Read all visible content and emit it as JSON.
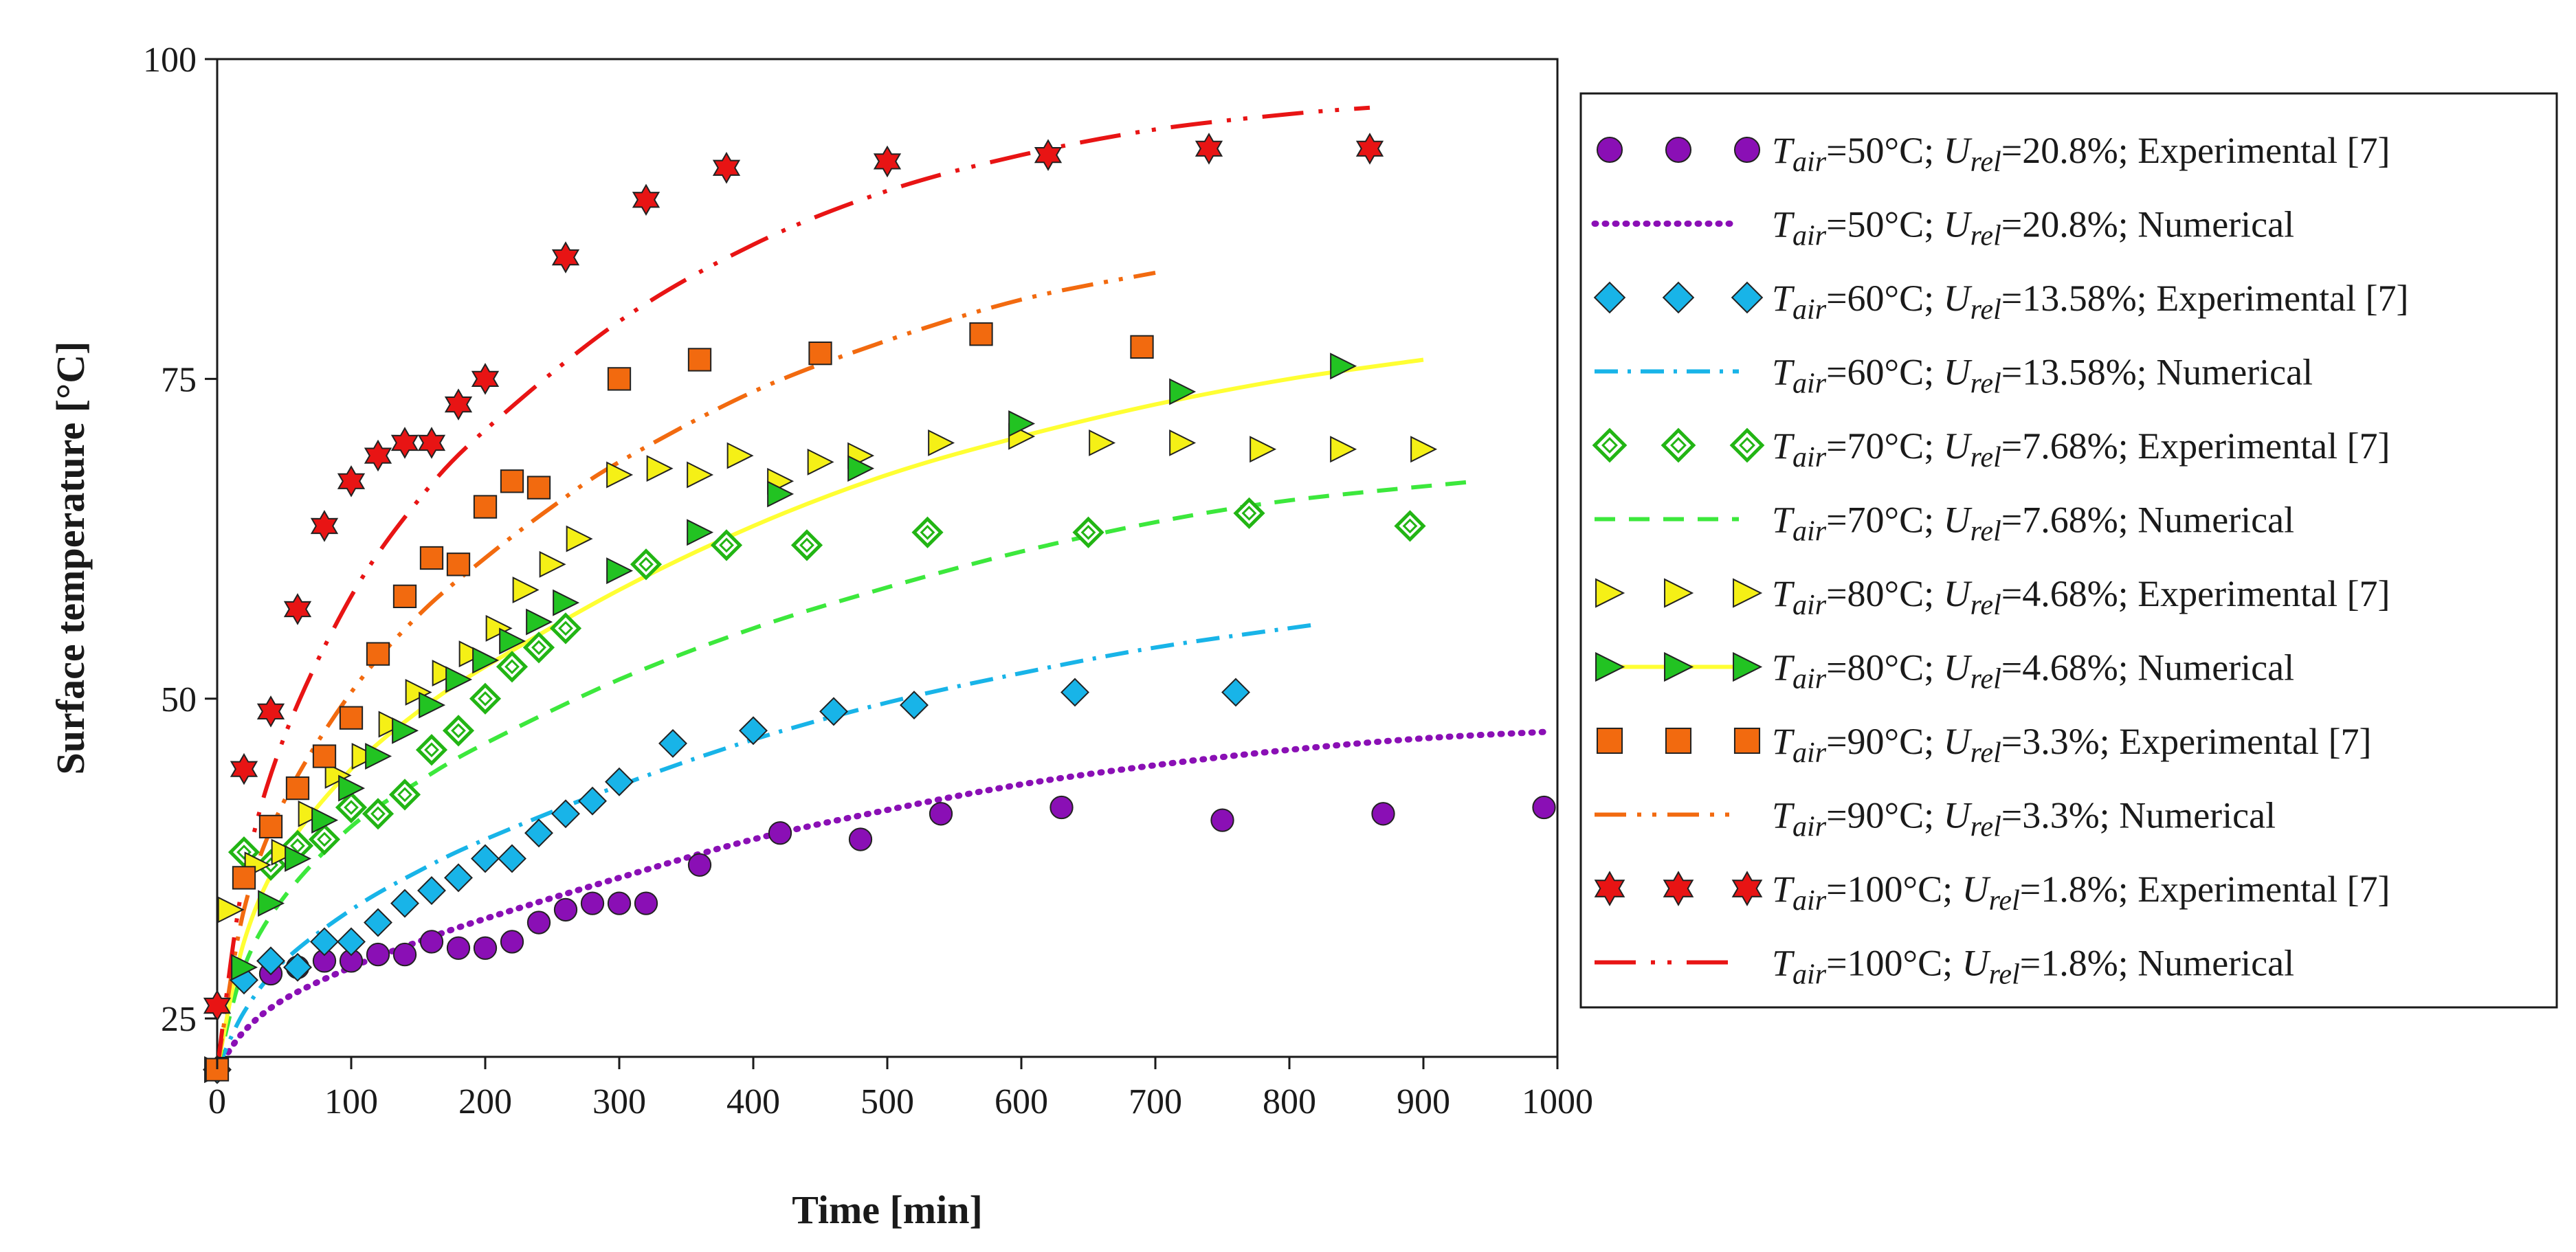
{
  "chart_data": {
    "type": "scatter",
    "title": "",
    "xlabel": "Time [min]",
    "ylabel": "Surface temperature [°C]",
    "xlim": [
      0,
      1000
    ],
    "ylim": [
      22,
      100
    ],
    "x_ticks": [
      0,
      100,
      200,
      300,
      400,
      500,
      600,
      700,
      800,
      900,
      1000
    ],
    "y_ticks": [
      25,
      50,
      75,
      100
    ],
    "x_tick_labels": [
      "0",
      "100",
      "200",
      "300",
      "400",
      "500",
      "600",
      "700",
      "800",
      "900",
      "1000"
    ],
    "y_tick_labels": [
      "25",
      "50",
      "75",
      "100"
    ],
    "grid": false,
    "legend_position": "right",
    "series": [
      {
        "name": "Tair=50°C; Urel=20.8%; Experimental [7]",
        "legend": {
          "t_value": "=50°C; ",
          "u_value": "=20.8%; Experimental [7]"
        },
        "kind": "marker",
        "marker": "circle",
        "color": "#8a0fb5",
        "x": [
          0,
          40,
          60,
          80,
          100,
          120,
          140,
          160,
          180,
          200,
          220,
          240,
          260,
          280,
          300,
          320,
          360,
          420,
          480,
          540,
          630,
          750,
          870,
          990
        ],
        "y": [
          21,
          28.5,
          29,
          29.5,
          29.5,
          30,
          30,
          31,
          30.5,
          30.5,
          31,
          32.5,
          33.5,
          34,
          34,
          34,
          37,
          39.5,
          39,
          41,
          41.5,
          40.5,
          41,
          41.5
        ]
      },
      {
        "name": "Tair=50°C; Urel=20.8%; Numerical",
        "legend": {
          "t_value": "=50°C; ",
          "u_value": "=20.8%; Numerical"
        },
        "kind": "line",
        "dash": "dotted",
        "color": "#8a0fb5",
        "x": [
          0,
          20,
          50,
          100,
          150,
          200,
          300,
          400,
          500,
          600,
          700,
          800,
          900,
          990
        ],
        "y": [
          21,
          24,
          26.5,
          29,
          31,
          32.8,
          36,
          39,
          41.3,
          43.3,
          44.8,
          46,
          46.9,
          47.4
        ]
      },
      {
        "name": "Tair=60°C; Urel=13.58%; Experimental [7]",
        "legend": {
          "t_value": "=60°C; ",
          "u_value": "=13.58%; Experimental [7]"
        },
        "kind": "marker",
        "marker": "diamond",
        "color": "#18b4e8",
        "x": [
          0,
          20,
          40,
          60,
          80,
          100,
          120,
          140,
          160,
          180,
          200,
          220,
          240,
          260,
          280,
          300,
          340,
          400,
          460,
          520,
          640,
          760
        ],
        "y": [
          21,
          28,
          29.5,
          29,
          31,
          31,
          32.5,
          34,
          35,
          36,
          37.5,
          37.5,
          39.5,
          41,
          42,
          43.5,
          46.5,
          47.5,
          49,
          49.5,
          50.5,
          50.5
        ]
      },
      {
        "name": "Tair=60°C; Urel=13.58%; Numerical",
        "legend": {
          "t_value": "=60°C; ",
          "u_value": "=13.58%; Numerical"
        },
        "kind": "line",
        "dash": "dashdot",
        "color": "#18b4e8",
        "x": [
          0,
          20,
          50,
          100,
          150,
          200,
          300,
          400,
          500,
          600,
          700,
          820
        ],
        "y": [
          21,
          25.5,
          29.5,
          33.5,
          36.5,
          39,
          43.2,
          46.8,
          49.7,
          52,
          54,
          55.8
        ]
      },
      {
        "name": "Tair=70°C; Urel=7.68%; Experimental [7]",
        "legend": {
          "t_value": "=70°C; ",
          "u_value": "=7.68%; Experimental [7]"
        },
        "kind": "marker",
        "marker": "hollow-diamond",
        "color": "#22b514",
        "x": [
          20,
          40,
          60,
          80,
          100,
          120,
          140,
          160,
          180,
          200,
          220,
          240,
          260,
          320,
          380,
          440,
          530,
          650,
          770,
          890
        ],
        "y": [
          38,
          37,
          38.5,
          39,
          41.5,
          41,
          42.5,
          46,
          47.5,
          50,
          52.5,
          54,
          55.5,
          60.5,
          62,
          62,
          63,
          63,
          64.5,
          63.5
        ]
      },
      {
        "name": "Tair=70°C; Urel=7.68%; Numerical",
        "legend": {
          "t_value": "=70°C; ",
          "u_value": "=7.68%; Numerical"
        },
        "kind": "line",
        "dash": "dashed",
        "color": "#3ce83c",
        "x": [
          0,
          20,
          50,
          100,
          150,
          200,
          300,
          400,
          500,
          600,
          700,
          800,
          940
        ],
        "y": [
          21,
          29,
          34.5,
          40,
          43.5,
          46.5,
          51.5,
          55.5,
          58.7,
          61.5,
          63.8,
          65.5,
          67
        ]
      },
      {
        "name": "Tair=80°C; Urel=4.68%; Experimental [7]",
        "legend": {
          "t_value": "=80°C; ",
          "u_value": "=4.68%; Experimental [7]"
        },
        "kind": "marker",
        "marker": "triangle-right",
        "color": "#f5f016",
        "x": [
          0,
          10,
          30,
          50,
          70,
          90,
          110,
          130,
          150,
          170,
          190,
          210,
          230,
          250,
          270,
          300,
          330,
          360,
          390,
          420,
          450,
          480,
          540,
          600,
          660,
          720,
          780,
          840,
          900
        ],
        "y": [
          21,
          33.5,
          37,
          38,
          41,
          44,
          45.5,
          48,
          50.5,
          52,
          53.5,
          55.5,
          58.5,
          60.5,
          62.5,
          67.5,
          68,
          67.5,
          69,
          67,
          68.5,
          69,
          70,
          70.5,
          70,
          70,
          69.5,
          69.5,
          69.5
        ]
      },
      {
        "name": "Tair=80°C; Urel=4.68%; Numerical",
        "legend": {
          "t_value": "=80°C; ",
          "u_value": "=4.68%; Numerical"
        },
        "kind": "marker-line",
        "marker": "triangle-right",
        "color": "#22c322",
        "line_color": "#ffff33",
        "x": [
          0,
          20,
          40,
          60,
          80,
          100,
          120,
          140,
          160,
          180,
          200,
          220,
          240,
          260,
          300,
          360,
          420,
          480,
          600,
          720,
          840
        ],
        "y": [
          21,
          29,
          34,
          37.5,
          40.5,
          43,
          45.5,
          47.5,
          49.5,
          51.5,
          53,
          54.5,
          56,
          57.5,
          60,
          63,
          66,
          68,
          71.5,
          74,
          76
        ],
        "line_x": [
          0,
          20,
          50,
          100,
          150,
          200,
          300,
          400,
          500,
          600,
          700,
          800,
          900
        ],
        "line_y": [
          21,
          31,
          38,
          44.5,
          49,
          52.5,
          58.5,
          63.5,
          67.5,
          70.5,
          73,
          75,
          76.5
        ]
      },
      {
        "name": "Tair=90°C; Urel=3.3%; Experimental [7]",
        "legend": {
          "t_value": "=90°C; ",
          "u_value": "=3.3%; Experimental [7]"
        },
        "kind": "marker",
        "marker": "square",
        "color": "#f26a0f",
        "x": [
          0,
          20,
          40,
          60,
          80,
          100,
          120,
          140,
          160,
          180,
          200,
          220,
          240,
          300,
          360,
          450,
          570,
          690
        ],
        "y": [
          21,
          36,
          40,
          43,
          45.5,
          48.5,
          53.5,
          58,
          61,
          60.5,
          65,
          67,
          66.5,
          75,
          76.5,
          77,
          78.5,
          77.5
        ]
      },
      {
        "name": "Tair=90°C; Urel=3.3%; Numerical",
        "legend": {
          "t_value": "=90°C; ",
          "u_value": "=3.3%; Numerical"
        },
        "kind": "line",
        "dash": "dashdotdot",
        "color": "#f26a0f",
        "x": [
          0,
          20,
          50,
          100,
          150,
          200,
          250,
          300,
          400,
          500,
          600,
          700
        ],
        "y": [
          21,
          33.5,
          42,
          50.5,
          56.5,
          61,
          65,
          68.5,
          74,
          78,
          81.2,
          83.3
        ]
      },
      {
        "name": "Tair=100°C; Urel=1.8%; Experimental [7]",
        "legend": {
          "t_value": "=100°C; ",
          "u_value": "=1.8%; Experimental [7]"
        },
        "kind": "marker",
        "marker": "star",
        "color": "#e81414",
        "x": [
          0,
          20,
          40,
          60,
          80,
          100,
          120,
          140,
          160,
          180,
          200,
          260,
          320,
          380,
          500,
          620,
          740,
          860
        ],
        "y": [
          26,
          44.5,
          49,
          57,
          63.5,
          67,
          69,
          70,
          70,
          73,
          75,
          84.5,
          89,
          91.5,
          92,
          92.5,
          93,
          93
        ]
      },
      {
        "name": "Tair=100°C; Urel=1.8%; Numerical",
        "legend": {
          "t_value": "=100°C; ",
          "u_value": "=1.8%; Numerical"
        },
        "kind": "line",
        "dash": "longdashdotdot",
        "color": "#e81414",
        "x": [
          0,
          20,
          50,
          100,
          150,
          200,
          300,
          400,
          500,
          600,
          700,
          800,
          860
        ],
        "y": [
          21,
          36,
          47,
          58,
          65.5,
          71,
          79.5,
          85.5,
          89.7,
          92.5,
          94.5,
          95.7,
          96.2
        ]
      }
    ]
  },
  "legend_symbols": {
    "t_main": "T",
    "t_sub": "air",
    "u_main": "U",
    "u_sub": "rel"
  }
}
